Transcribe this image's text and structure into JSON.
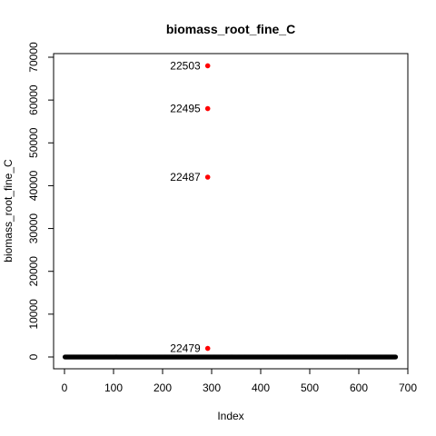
{
  "chart_data": {
    "type": "scatter",
    "title": "biomass_root_fine_C",
    "xlabel": "Index",
    "ylabel": "biomass_root_fine_C",
    "xlim": [
      0,
      700
    ],
    "ylim": [
      0,
      70000
    ],
    "x_ticks": [
      0,
      100,
      200,
      300,
      400,
      500,
      600,
      700
    ],
    "y_ticks": [
      0,
      10000,
      20000,
      30000,
      40000,
      50000,
      60000,
      70000
    ],
    "grid": false,
    "legend": "none",
    "baseline_series": {
      "x_range": [
        1,
        675
      ],
      "y": 0,
      "color": "#000000"
    },
    "outliers": [
      {
        "label": "22503",
        "x": 292,
        "y": 68000
      },
      {
        "label": "22495",
        "x": 292,
        "y": 58000
      },
      {
        "label": "22487",
        "x": 292,
        "y": 42000
      },
      {
        "label": "22479",
        "x": 292,
        "y": 2000
      }
    ],
    "outlier_color": "#ff0000"
  }
}
